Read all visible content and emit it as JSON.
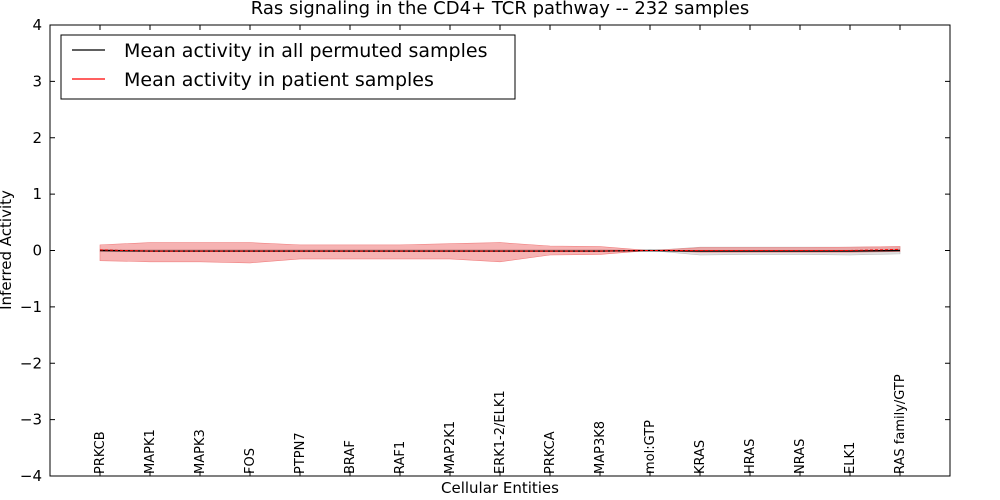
{
  "chart_data": {
    "type": "line",
    "title": "Ras signaling in the CD4+ TCR pathway -- 232 samples",
    "xlabel": "Cellular Entities",
    "ylabel": "Inferred Activity",
    "ylim": [
      -4,
      4
    ],
    "yticks": [
      -4,
      -3,
      -2,
      -1,
      0,
      1,
      2,
      3,
      4
    ],
    "ytick_labels": [
      "−4",
      "−3",
      "−2",
      "−1",
      "0",
      "1",
      "2",
      "3",
      "4"
    ],
    "categories": [
      "PRKCB",
      "MAPK1",
      "MAPK3",
      "FOS",
      "PTPN7",
      "BRAF",
      "RAF1",
      "MAP2K1",
      "ERK1-2/ELK1",
      "PRKCA",
      "MAP3K8",
      "mol:GTP",
      "KRAS",
      "HRAS",
      "NRAS",
      "ELK1",
      "RAS family/GTP"
    ],
    "legend_position": "upper-left",
    "grid": false,
    "series": [
      {
        "name": "Mean activity in all permuted samples",
        "color": "#000000",
        "values": [
          0.0,
          -0.01,
          -0.01,
          -0.01,
          -0.01,
          -0.01,
          -0.01,
          -0.01,
          -0.01,
          -0.01,
          -0.01,
          0.0,
          -0.01,
          -0.01,
          -0.01,
          -0.01,
          0.0
        ],
        "band_lower": [
          -0.02,
          -0.02,
          -0.02,
          -0.02,
          -0.02,
          -0.02,
          -0.02,
          -0.02,
          -0.02,
          -0.02,
          -0.02,
          0.0,
          -0.08,
          -0.07,
          -0.07,
          -0.08,
          -0.06
        ],
        "band_upper": [
          0.02,
          0.02,
          0.02,
          0.02,
          0.02,
          0.02,
          0.02,
          0.02,
          0.02,
          0.02,
          0.02,
          0.0,
          0.06,
          0.06,
          0.06,
          0.06,
          0.07
        ],
        "band_color": "#bbbbbb"
      },
      {
        "name": "Mean activity in patient samples",
        "color": "#ff0000",
        "values": [
          0.01,
          -0.01,
          -0.01,
          -0.01,
          -0.01,
          -0.01,
          -0.01,
          -0.01,
          -0.01,
          -0.01,
          -0.01,
          0.0,
          0.0,
          0.0,
          0.0,
          0.0,
          0.02
        ],
        "band_lower": [
          -0.18,
          -0.2,
          -0.2,
          -0.22,
          -0.15,
          -0.15,
          -0.15,
          -0.15,
          -0.2,
          -0.08,
          -0.07,
          0.0,
          -0.03,
          -0.03,
          -0.03,
          -0.03,
          -0.02
        ],
        "band_upper": [
          0.1,
          0.14,
          0.14,
          0.14,
          0.1,
          0.1,
          0.1,
          0.12,
          0.14,
          0.08,
          0.07,
          0.0,
          0.05,
          0.05,
          0.05,
          0.06,
          0.07
        ],
        "band_color": "#f08080"
      }
    ]
  }
}
